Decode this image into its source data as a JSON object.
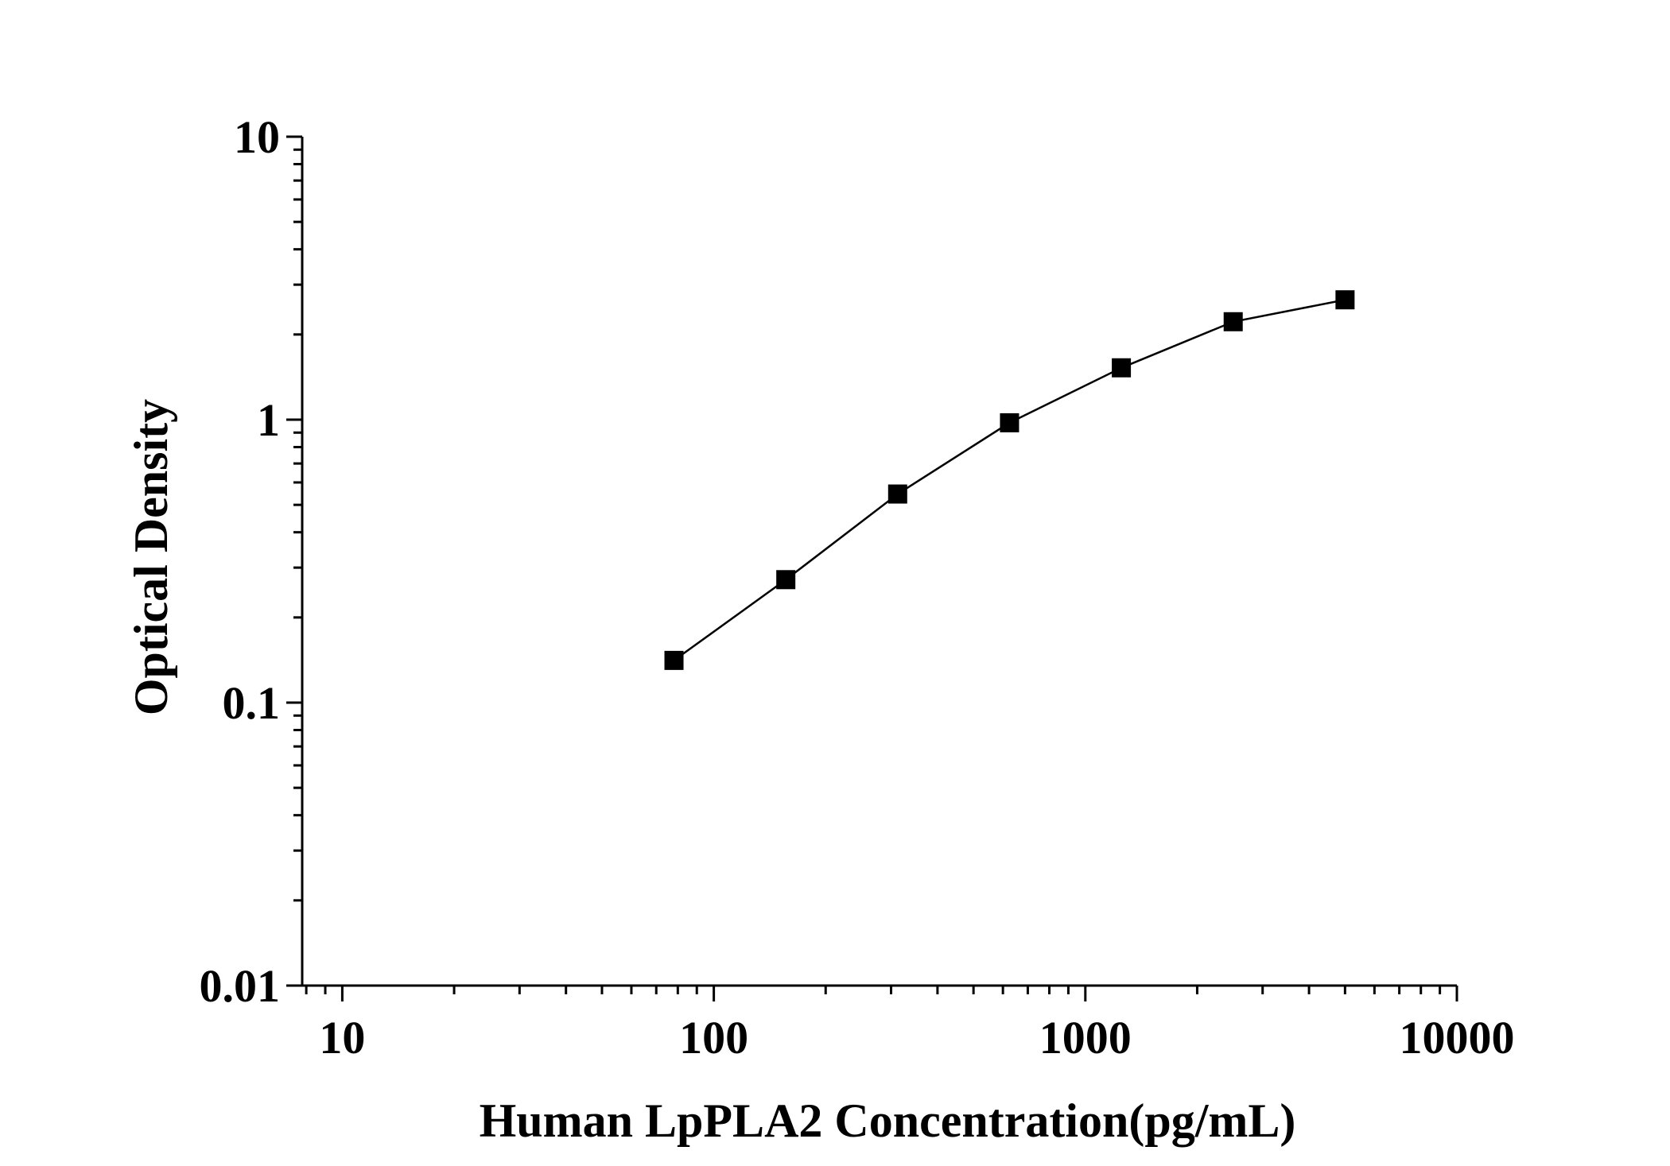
{
  "chart_data": {
    "type": "line",
    "title": "",
    "xlabel": "Human LpPLA2 Concentration(pg/mL)",
    "ylabel": "Optical Density",
    "x_scale": "log",
    "y_scale": "log",
    "xlim": [
      7.8,
      10000
    ],
    "ylim": [
      0.01,
      10
    ],
    "x_ticks": [
      "10",
      "100",
      "1000",
      "10000"
    ],
    "y_ticks": [
      "0.01",
      "0.1",
      "1",
      "10"
    ],
    "x_tick_values": [
      10,
      100,
      1000,
      10000
    ],
    "y_tick_values": [
      0.01,
      0.1,
      1,
      10
    ],
    "grid": false,
    "legend": "none",
    "marker": "square",
    "color": "#000000",
    "series": [
      {
        "x": [
          78.125,
          156.25,
          312.5,
          625,
          1250,
          2500,
          5000
        ],
        "y": [
          0.141,
          0.272,
          0.546,
          0.975,
          1.525,
          2.219,
          2.652
        ]
      }
    ]
  }
}
